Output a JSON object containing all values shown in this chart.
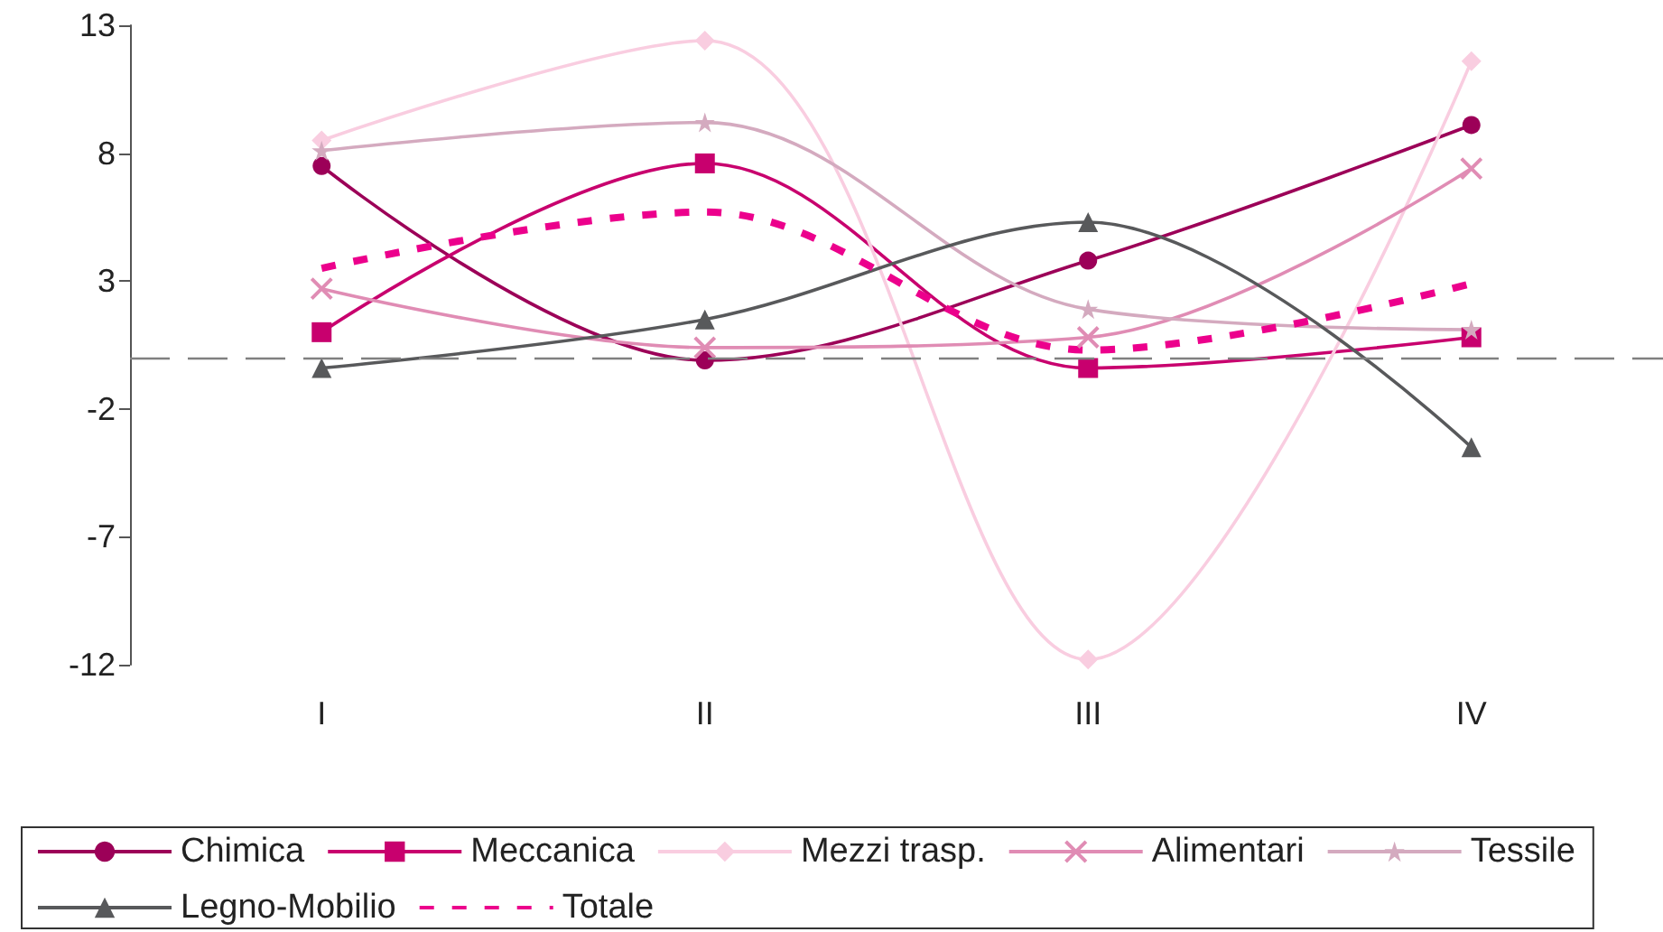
{
  "chart_data": {
    "type": "line",
    "categories": [
      "I",
      "II",
      "III",
      "IV"
    ],
    "series": [
      {
        "name": "Chimica",
        "color": "#9c0058",
        "marker": "circle",
        "values": [
          7.5,
          -0.1,
          3.8,
          9.1
        ]
      },
      {
        "name": "Meccanica",
        "color": "#c8006e",
        "marker": "square",
        "values": [
          1.0,
          7.6,
          -0.4,
          0.8
        ]
      },
      {
        "name": "Mezzi trasp.",
        "color": "#f9cde0",
        "marker": "diamond",
        "values": [
          8.5,
          12.4,
          -11.8,
          11.6
        ]
      },
      {
        "name": "Alimentari",
        "color": "#e08cb4",
        "marker": "cross",
        "values": [
          2.7,
          0.4,
          0.8,
          7.4
        ]
      },
      {
        "name": "Tessile",
        "color": "#d4aabf",
        "marker": "star",
        "values": [
          8.1,
          9.2,
          1.9,
          1.1
        ]
      },
      {
        "name": "Legno-Mobilio",
        "color": "#58595b",
        "marker": "triangle",
        "values": [
          -0.4,
          1.5,
          5.3,
          -3.5
        ]
      },
      {
        "name": "Totale",
        "color": "#ec008c",
        "marker": "none",
        "line_style": "dashed",
        "values": [
          3.5,
          5.7,
          0.3,
          2.9
        ]
      }
    ],
    "ylim": [
      -12,
      13
    ],
    "yticks": [
      -12,
      -7,
      -2,
      3,
      8,
      13
    ],
    "grid": false,
    "legend": "bottom",
    "ref_lines": [
      {
        "axis": "y",
        "value": 0,
        "color": "#808080",
        "line_style": "dashed"
      }
    ]
  }
}
